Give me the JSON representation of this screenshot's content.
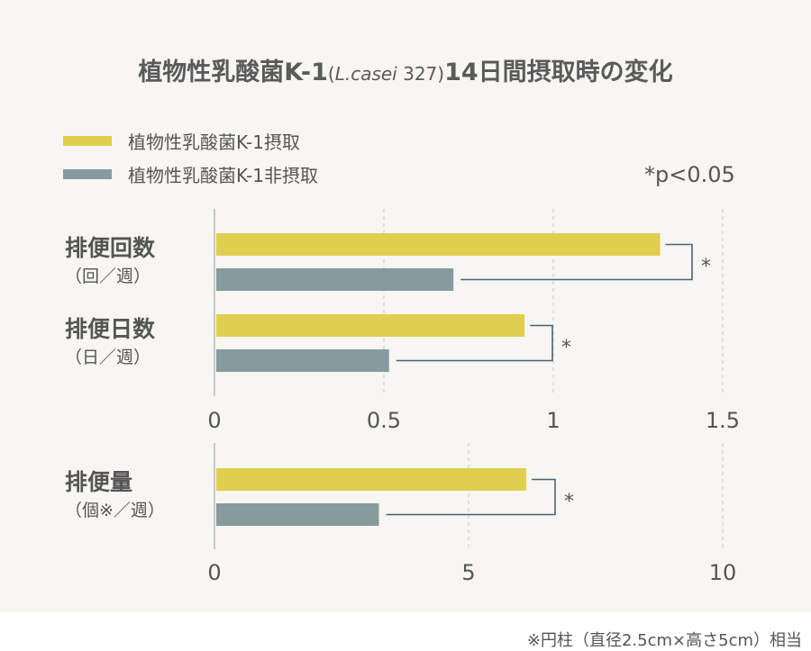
{
  "title": {
    "main_before": "植物性乳酸菌K-1",
    "paren_open": "(",
    "italic": "L.casei",
    "strain": " 327",
    "paren_close": ")",
    "main_after": "14日間摂取時の変化"
  },
  "legend": [
    {
      "label": "植物性乳酸菌K-1摂取",
      "color": "#e0cf4f"
    },
    {
      "label": "植物性乳酸菌K-1非摂取",
      "color": "#879a9e"
    }
  ],
  "significance_note": "*p<0.05",
  "significance_mark": "*",
  "footnote": "※円柱（直径2.5cm×高さ5cm）相当",
  "chart_data": [
    {
      "type": "bar",
      "orientation": "horizontal",
      "categories": [
        {
          "name": "排便回数",
          "unit": "（回／週）"
        },
        {
          "name": "排便日数",
          "unit": "（日／週）"
        }
      ],
      "series": [
        {
          "name": "植物性乳酸菌K-1摂取",
          "values": [
            1.31,
            0.91
          ]
        },
        {
          "name": "植物性乳酸菌K-1非摂取",
          "values": [
            0.7,
            0.51
          ]
        }
      ],
      "significant": [
        true,
        true
      ],
      "xlim": [
        0,
        1.5
      ],
      "ticks": [
        {
          "value": 0,
          "label": "0"
        },
        {
          "value": 0.5,
          "label": "0.5"
        },
        {
          "value": 1,
          "label": "1"
        },
        {
          "value": 1.5,
          "label": "1.5"
        }
      ],
      "grid": true
    },
    {
      "type": "bar",
      "orientation": "horizontal",
      "categories": [
        {
          "name": "排便量",
          "unit": "（個※／週）"
        }
      ],
      "series": [
        {
          "name": "植物性乳酸菌K-1摂取",
          "values": [
            6.1
          ]
        },
        {
          "name": "植物性乳酸菌K-1非摂取",
          "values": [
            3.2
          ]
        }
      ],
      "significant": [
        true
      ],
      "xlim": [
        0,
        10
      ],
      "ticks": [
        {
          "value": 0,
          "label": "0"
        },
        {
          "value": 5,
          "label": "5"
        },
        {
          "value": 10,
          "label": "10"
        }
      ],
      "grid": true
    }
  ]
}
